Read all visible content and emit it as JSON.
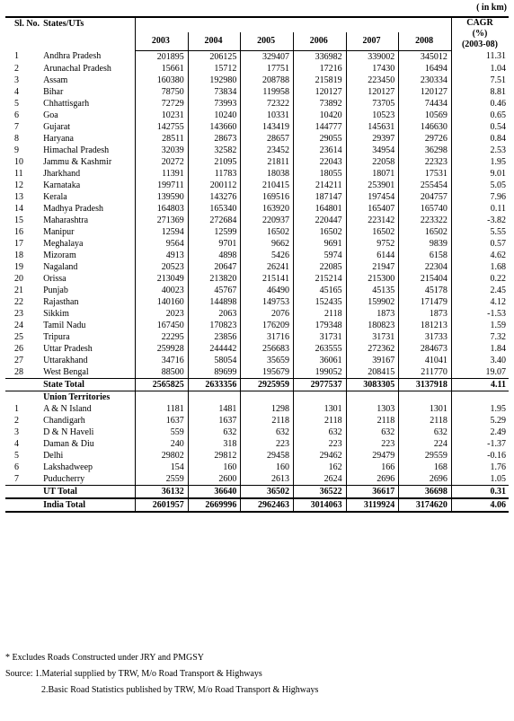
{
  "unit_label": "( in km)",
  "headers": {
    "sl": "Sl. No.",
    "state": "States/UTs",
    "years": [
      "2003",
      "2004",
      "2005",
      "2006",
      "2007",
      "2008"
    ],
    "cagr": [
      "CAGR",
      "(%)",
      "(2003-08)"
    ]
  },
  "states": [
    [
      "1",
      "Andhra Pradesh",
      "201895",
      "206125",
      "329407",
      "336982",
      "339002",
      "345012",
      "11.31"
    ],
    [
      "2",
      "Arunachal Pradesh",
      "15661",
      "15712",
      "17751",
      "17216",
      "17430",
      "16494",
      "1.04"
    ],
    [
      "3",
      "Assam",
      "160380",
      "192980",
      "208788",
      "215819",
      "223450",
      "230334",
      "7.51"
    ],
    [
      "4",
      "Bihar",
      "78750",
      "73834",
      "119958",
      "120127",
      "120127",
      "120127",
      "8.81"
    ],
    [
      "5",
      "Chhattisgarh",
      "72729",
      "73993",
      "72322",
      "73892",
      "73705",
      "74434",
      "0.46"
    ],
    [
      "6",
      "Goa",
      "10231",
      "10240",
      "10331",
      "10420",
      "10523",
      "10569",
      "0.65"
    ],
    [
      "7",
      "Gujarat",
      "142755",
      "143660",
      "143419",
      "144777",
      "145631",
      "146630",
      "0.54"
    ],
    [
      "8",
      "Haryana",
      "28511",
      "28673",
      "28657",
      "29055",
      "29397",
      "29726",
      "0.84"
    ],
    [
      "9",
      "Himachal Pradesh",
      "32039",
      "32582",
      "23452",
      "23614",
      "34954",
      "36298",
      "2.53"
    ],
    [
      "10",
      "Jammu & Kashmir",
      "20272",
      "21095",
      "21811",
      "22043",
      "22058",
      "22323",
      "1.95"
    ],
    [
      "11",
      "Jharkhand",
      "11391",
      "11783",
      "18038",
      "18055",
      "18071",
      "17531",
      "9.01"
    ],
    [
      "12",
      "Karnataka",
      "199711",
      "200112",
      "210415",
      "214211",
      "253901",
      "255454",
      "5.05"
    ],
    [
      "13",
      "Kerala",
      "139590",
      "143276",
      "169516",
      "187147",
      "197454",
      "204757",
      "7.96"
    ],
    [
      "14",
      "Madhya Pradesh",
      "164803",
      "165340",
      "163920",
      "164801",
      "165407",
      "165740",
      "0.11"
    ],
    [
      "15",
      "Maharashtra",
      "271369",
      "272684",
      "220937",
      "220447",
      "223142",
      "223322",
      "-3.82"
    ],
    [
      "16",
      "Manipur",
      "12594",
      "12599",
      "16502",
      "16502",
      "16502",
      "16502",
      "5.55"
    ],
    [
      "17",
      "Meghalaya",
      "9564",
      "9701",
      "9662",
      "9691",
      "9752",
      "9839",
      "0.57"
    ],
    [
      "18",
      "Mizoram",
      "4913",
      "4898",
      "5426",
      "5974",
      "6144",
      "6158",
      "4.62"
    ],
    [
      "19",
      "Nagaland",
      "20523",
      "20647",
      "26241",
      "22085",
      "21947",
      "22304",
      "1.68"
    ],
    [
      "20",
      "Orissa",
      "213049",
      "213820",
      "215141",
      "215214",
      "215300",
      "215404",
      "0.22"
    ],
    [
      "21",
      "Punjab",
      "40023",
      "45767",
      "46490",
      "45165",
      "45135",
      "45178",
      "2.45"
    ],
    [
      "22",
      "Rajasthan",
      "140160",
      "144898",
      "149753",
      "152435",
      "159902",
      "171479",
      "4.12"
    ],
    [
      "23",
      "Sikkim",
      "2023",
      "2063",
      "2076",
      "2118",
      "1873",
      "1873",
      "-1.53"
    ],
    [
      "24",
      "Tamil Nadu",
      "167450",
      "170823",
      "176209",
      "179348",
      "180823",
      "181213",
      "1.59"
    ],
    [
      "25",
      "Tripura",
      "22295",
      "23856",
      "31716",
      "31731",
      "31731",
      "31733",
      "7.32"
    ],
    [
      "26",
      "Uttar Pradesh",
      "259928",
      "244442",
      "256683",
      "263555",
      "272362",
      "284673",
      "1.84"
    ],
    [
      "27",
      "Uttarakhand",
      "34716",
      "58054",
      "35659",
      "36061",
      "39167",
      "41041",
      "3.40"
    ],
    [
      "28",
      "West Bengal",
      "88500",
      "89699",
      "195679",
      "199052",
      "208415",
      "211770",
      "19.07"
    ]
  ],
  "state_total": [
    "State Total",
    "2565825",
    "2633356",
    "2925959",
    "2977537",
    "3083305",
    "3137918",
    "4.11"
  ],
  "ut_heading": "Union Territories",
  "uts": [
    [
      "1",
      "A & N Island",
      "1181",
      "1481",
      "1298",
      "1301",
      "1303",
      "1301",
      "1.95"
    ],
    [
      "2",
      "Chandigarh",
      "1637",
      "1637",
      "2118",
      "2118",
      "2118",
      "2118",
      "5.29"
    ],
    [
      "3",
      "D & N Haveli",
      "559",
      "632",
      "632",
      "632",
      "632",
      "632",
      "2.49"
    ],
    [
      "4",
      "Daman & Diu",
      "240",
      "318",
      "223",
      "223",
      "223",
      "224",
      "-1.37"
    ],
    [
      "5",
      "Delhi",
      "29802",
      "29812",
      "29458",
      "29462",
      "29479",
      "29559",
      "-0.16"
    ],
    [
      "6",
      "Lakshadweep",
      "154",
      "160",
      "160",
      "162",
      "166",
      "168",
      "1.76"
    ],
    [
      "7",
      "Puducherry",
      "2559",
      "2600",
      "2613",
      "2624",
      "2696",
      "2696",
      "1.05"
    ]
  ],
  "ut_total": [
    "UT Total",
    "36132",
    "36640",
    "36502",
    "36522",
    "36617",
    "36698",
    "0.31"
  ],
  "india_total": [
    "India Total",
    "2601957",
    "2669996",
    "2962463",
    "3014063",
    "3119924",
    "3174620",
    "4.06"
  ],
  "notes": {
    "footnote": "* Excludes Roads Constructed under JRY and PMGSY",
    "source1": "Source: 1.Material supplied by TRW, M/o Road Transport & Highways",
    "source2": "2.Basic Road Statistics published by TRW, M/o Road Transport & Highways"
  }
}
